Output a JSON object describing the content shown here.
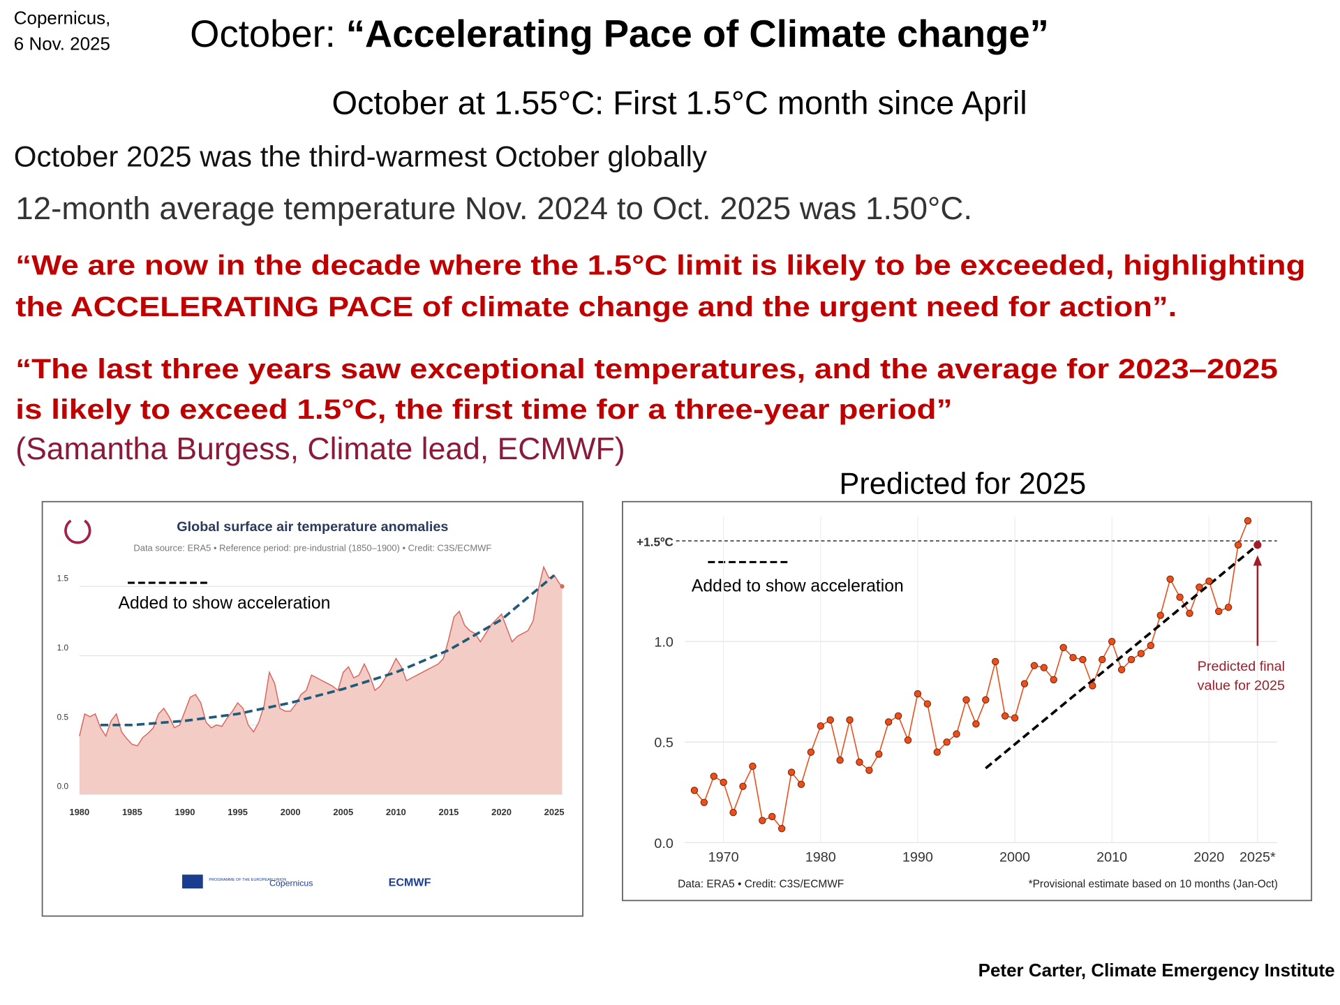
{
  "source_line1": "Copernicus,",
  "source_line2": "6 Nov. 2025",
  "title_prefix": "October:",
  "title_quote": "“Accelerating Pace of Climate change”",
  "subtitle": "October at 1.55°C: First 1.5°C month since April",
  "statement_1": "October 2025 was the third-warmest October globally",
  "statement_2": "12-month average temperature Nov. 2024 to Oct. 2025 was 1.50°C.",
  "quote_1": [
    "“We are now in the decade where the 1.5°C limit is likely to be exceeded, highlighting",
    "the ACCELERATING PACE  of climate change and the urgent need for action”."
  ],
  "quote_2": [
    "“The last three years saw exceptional temperatures, and the average for 2023–2025",
    "is likely to exceed 1.5°C, the first time for a three-year period”"
  ],
  "attribution": "(Samantha Burgess, Climate lead, ECMWF)",
  "credit": "Peter Carter, Climate Emergency Institute",
  "chart_data": [
    {
      "type": "area",
      "title": "Global surface air temperature anomalies",
      "subtitle": "Data source: ERA5 • Reference period: pre-industrial (1850–1900) • Credit: C3S/ECMWF",
      "x": [
        1980,
        1980.5,
        1981,
        1981.5,
        1982,
        1982.5,
        1983,
        1983.5,
        1984,
        1984.5,
        1985,
        1985.5,
        1986,
        1986.5,
        1987,
        1987.5,
        1988,
        1988.5,
        1989,
        1989.5,
        1990,
        1990.5,
        1991,
        1991.5,
        1992,
        1992.5,
        1993,
        1993.5,
        1994,
        1994.5,
        1995,
        1995.5,
        1996,
        1996.5,
        1997,
        1997.5,
        1998,
        1998.5,
        1999,
        1999.5,
        2000,
        2000.5,
        2001,
        2001.5,
        2002,
        2002.5,
        2003,
        2003.5,
        2004,
        2004.5,
        2005,
        2005.5,
        2006,
        2006.5,
        2007,
        2007.5,
        2008,
        2008.5,
        2009,
        2009.5,
        2010,
        2010.5,
        2011,
        2011.5,
        2012,
        2012.5,
        2013,
        2013.5,
        2014,
        2014.5,
        2015,
        2015.5,
        2016,
        2016.5,
        2017,
        2017.5,
        2018,
        2018.5,
        2019,
        2019.5,
        2020,
        2020.5,
        2021,
        2021.5,
        2022,
        2022.5,
        2023,
        2023.5,
        2024,
        2024.5,
        2025,
        2025.5,
        2025.75
      ],
      "values": [
        0.42,
        0.58,
        0.56,
        0.58,
        0.48,
        0.42,
        0.53,
        0.58,
        0.45,
        0.4,
        0.36,
        0.35,
        0.41,
        0.44,
        0.48,
        0.58,
        0.62,
        0.56,
        0.48,
        0.5,
        0.6,
        0.7,
        0.72,
        0.66,
        0.52,
        0.48,
        0.5,
        0.49,
        0.55,
        0.6,
        0.66,
        0.62,
        0.5,
        0.45,
        0.52,
        0.64,
        0.88,
        0.8,
        0.62,
        0.6,
        0.6,
        0.65,
        0.72,
        0.75,
        0.86,
        0.84,
        0.82,
        0.8,
        0.78,
        0.75,
        0.88,
        0.92,
        0.84,
        0.86,
        0.94,
        0.86,
        0.75,
        0.78,
        0.84,
        0.9,
        0.98,
        0.92,
        0.82,
        0.84,
        0.86,
        0.88,
        0.9,
        0.92,
        0.94,
        0.98,
        1.12,
        1.28,
        1.32,
        1.22,
        1.18,
        1.16,
        1.1,
        1.16,
        1.22,
        1.26,
        1.3,
        1.2,
        1.1,
        1.14,
        1.16,
        1.18,
        1.25,
        1.48,
        1.64,
        1.56,
        1.58,
        1.52,
        1.5
      ],
      "color": "#f4ccc6",
      "line_color": "#d9665e",
      "trend": {
        "x": [
          1982,
          1985,
          1990,
          1995,
          2000,
          2005,
          2010,
          2015,
          2020,
          2025
        ],
        "values": [
          0.5,
          0.5,
          0.53,
          0.58,
          0.66,
          0.76,
          0.88,
          1.04,
          1.26,
          1.58
        ],
        "color": "#1f5a7a"
      },
      "annotation": "Added to show acceleration",
      "xlim": [
        1980,
        2025.8
      ],
      "xticks": [
        1980,
        1985,
        1990,
        1995,
        2000,
        2005,
        2010,
        2015,
        2020,
        2025
      ],
      "ylim": [
        0,
        1.7
      ],
      "yticks": [
        {
          "value": 0,
          "label": "0.0"
        },
        0.5,
        {
          "value": 1,
          "label": "1.0"
        },
        1.5
      ],
      "grid": true,
      "logos": [
        "PROGRAMME OF THE EUROPEAN UNION",
        "Copernicus",
        "ECMWF"
      ]
    },
    {
      "type": "line",
      "heading": "Predicted for 2025",
      "x": [
        1967,
        1968,
        1969,
        1970,
        1971,
        1972,
        1973,
        1974,
        1975,
        1976,
        1977,
        1978,
        1979,
        1980,
        1981,
        1982,
        1983,
        1984,
        1985,
        1986,
        1987,
        1988,
        1989,
        1990,
        1991,
        1992,
        1993,
        1994,
        1995,
        1996,
        1997,
        1998,
        1999,
        2000,
        2001,
        2002,
        2003,
        2004,
        2005,
        2006,
        2007,
        2008,
        2009,
        2010,
        2011,
        2012,
        2013,
        2014,
        2015,
        2016,
        2017,
        2018,
        2019,
        2020,
        2021,
        2022,
        2023,
        2024
      ],
      "values": [
        0.26,
        0.2,
        0.33,
        0.3,
        0.15,
        0.28,
        0.38,
        0.11,
        0.13,
        0.07,
        0.35,
        0.29,
        0.45,
        0.58,
        0.61,
        0.41,
        0.61,
        0.4,
        0.36,
        0.44,
        0.6,
        0.63,
        0.51,
        0.74,
        0.69,
        0.45,
        0.5,
        0.54,
        0.71,
        0.59,
        0.71,
        0.9,
        0.63,
        0.62,
        0.79,
        0.88,
        0.87,
        0.81,
        0.97,
        0.92,
        0.91,
        0.78,
        0.91,
        1.0,
        0.86,
        0.91,
        0.94,
        0.98,
        1.13,
        1.31,
        1.22,
        1.14,
        1.27,
        1.3,
        1.15,
        1.17,
        1.48,
        1.6
      ],
      "color": "#e8501c",
      "prediction": {
        "x": 2025,
        "value": 1.48,
        "color": "#a01c28",
        "label": [
          "Predicted final",
          "value for 2025"
        ]
      },
      "trend": {
        "x": [
          1997,
          2025
        ],
        "values": [
          0.37,
          1.48
        ],
        "color": "#000000"
      },
      "annotation": "Added to show acceleration",
      "xlim": [
        1966,
        2027
      ],
      "xticks": [
        1970,
        1980,
        1990,
        2000,
        2010,
        2020,
        {
          "value": 2025,
          "label": "2025*"
        }
      ],
      "ylim": [
        0,
        1.62
      ],
      "yticks": [
        {
          "value": 0,
          "label": "0.0"
        },
        0.5,
        {
          "value": 1,
          "label": "1.0"
        },
        {
          "value": 1.5,
          "label": "+1.5ºC"
        }
      ],
      "grid": true,
      "footnote_left": "Data: ERA5 • Credit: C3S/ECMWF",
      "footnote_right": "*Provisional estimate based on 10 months (Jan-Oct)"
    }
  ]
}
